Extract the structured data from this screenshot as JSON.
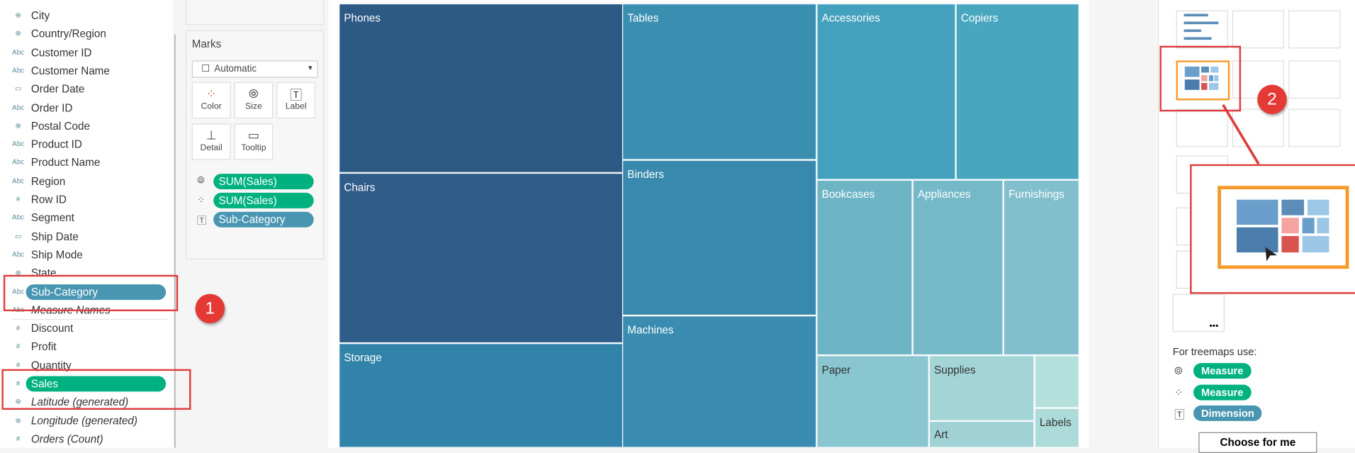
{
  "fields": {
    "dimensions": [
      {
        "icon": "globe-icon",
        "glyph": "⊕",
        "label": "City"
      },
      {
        "icon": "globe-icon",
        "glyph": "⊕",
        "label": "Country/Region"
      },
      {
        "icon": "abc-icon",
        "glyph": "Abc",
        "label": "Customer ID"
      },
      {
        "icon": "abc-icon",
        "glyph": "Abc",
        "label": "Customer Name"
      },
      {
        "icon": "calendar-icon",
        "glyph": "▭",
        "label": "Order Date"
      },
      {
        "icon": "abc-icon",
        "glyph": "Abc",
        "label": "Order ID"
      },
      {
        "icon": "globe-icon",
        "glyph": "⊕",
        "label": "Postal Code"
      },
      {
        "icon": "abc-icon",
        "glyph": "Abc",
        "label": "Product ID"
      },
      {
        "icon": "abc-icon",
        "glyph": "Abc",
        "label": "Product Name"
      },
      {
        "icon": "abc-icon",
        "glyph": "Abc",
        "label": "Region"
      },
      {
        "icon": "hash-icon",
        "glyph": "#",
        "label": "Row ID"
      },
      {
        "icon": "abc-icon",
        "glyph": "Abc",
        "label": "Segment"
      },
      {
        "icon": "calendar-icon",
        "glyph": "▭",
        "label": "Ship Date"
      },
      {
        "icon": "abc-icon",
        "glyph": "Abc",
        "label": "Ship Mode"
      },
      {
        "icon": "globe-icon",
        "glyph": "⊕",
        "label": "State"
      }
    ],
    "dragged_dimension": {
      "glyph": "Abc",
      "label": "Sub-Category"
    },
    "measure_names": {
      "glyph": "Abc",
      "label": "Measure Names"
    },
    "measures": [
      {
        "glyph": "#",
        "label": "Discount"
      },
      {
        "glyph": "#",
        "label": "Profit"
      },
      {
        "glyph": "#",
        "label": "Quantity"
      }
    ],
    "dragged_measure": {
      "glyph": "#",
      "label": "Sales"
    },
    "generated": [
      {
        "glyph": "⊕",
        "label": "Latitude (generated)"
      },
      {
        "glyph": "⊕",
        "label": "Longitude (generated)"
      },
      {
        "glyph": "#",
        "label": "Orders (Count)"
      }
    ]
  },
  "badges": {
    "one": "1",
    "two": "2"
  },
  "marks": {
    "title": "Marks",
    "mark_type": "Automatic",
    "buttons": {
      "color": "Color",
      "size": "Size",
      "label": "Label",
      "detail": "Detail",
      "tooltip": "Tooltip"
    },
    "pills": [
      {
        "icon": "size-icon",
        "label": "SUM(Sales)"
      },
      {
        "icon": "color-icon",
        "label": "SUM(Sales)"
      },
      {
        "icon": "label-icon",
        "label": "Sub-Category"
      }
    ]
  },
  "chart_data": {
    "type": "treemap",
    "size_measure": "SUM(Sales)",
    "color_measure": "SUM(Sales)",
    "label_dimension": "Sub-Category",
    "categories": [
      "Phones",
      "Chairs",
      "Storage",
      "Tables",
      "Binders",
      "Machines",
      "Accessories",
      "Copiers",
      "Bookcases",
      "Appliances",
      "Furnishings",
      "Paper",
      "Supplies",
      "Art",
      "Labels"
    ],
    "colors": [
      "#2d5985",
      "#2f5c89",
      "#3283a9",
      "#3a8fb1",
      "#3889ad",
      "#3a8db0",
      "#44a1bd",
      "#48a6bf",
      "#6db4c5",
      "#75b9c8",
      "#80bfcb",
      "#89c6cf",
      "#a3d4d6",
      "#a0d1d4",
      "#addbd9"
    ]
  },
  "showme": {
    "hint": "For treemaps use:",
    "requirements": [
      {
        "icon": "size-icon",
        "label": "Measure"
      },
      {
        "icon": "color-icon",
        "label": "Measure"
      },
      {
        "icon": "label-icon",
        "label": "Dimension"
      }
    ],
    "choose_button": "Choose for me"
  }
}
